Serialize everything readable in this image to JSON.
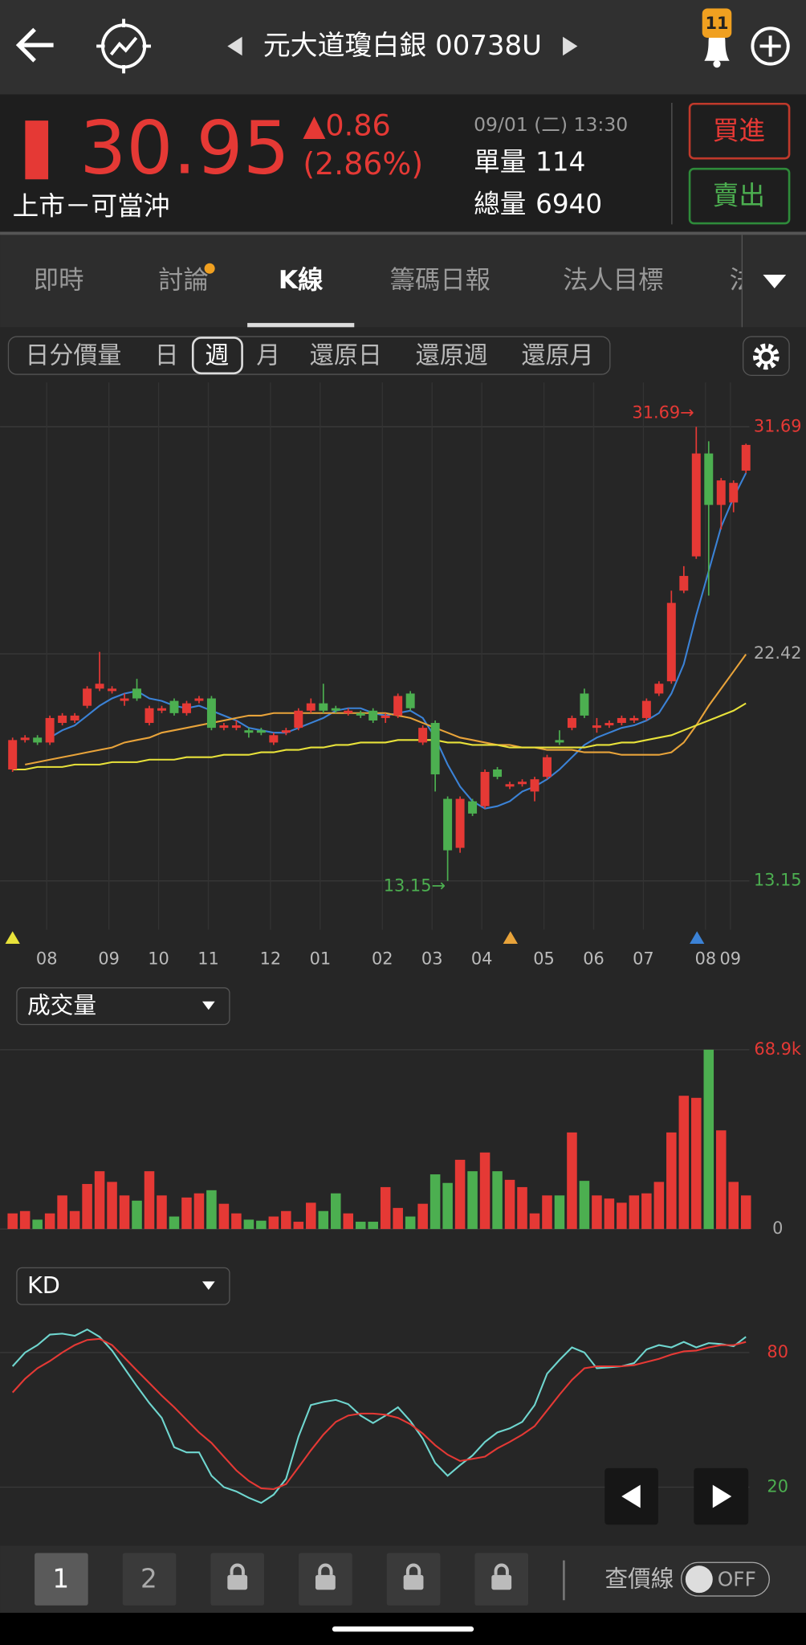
{
  "header": {
    "title": "元大道瓊白銀 00738U",
    "badge": "11"
  },
  "quote": {
    "price": "30.95",
    "change": "▲0.86",
    "percent": "(2.86%)",
    "market": "上市－可當沖",
    "time": "09/01 (二) 13:30",
    "single_label": "單量",
    "single_value": "114",
    "total_label": "總量",
    "total_value": "6940",
    "buy": "買進",
    "sell": "賣出"
  },
  "tabs": [
    "即時",
    "討論",
    "K線",
    "籌碼日報",
    "法人目標",
    "法"
  ],
  "periods": [
    "日分價量",
    "日",
    "週",
    "月",
    "還原日",
    "還原週",
    "還原月"
  ],
  "chart_data": [
    {
      "type": "candlestick",
      "categories": [
        null,
        null,
        null,
        "08",
        null,
        null,
        null,
        null,
        "09",
        null,
        null,
        null,
        "10",
        null,
        null,
        null,
        "11",
        null,
        null,
        null,
        null,
        "12",
        null,
        null,
        null,
        "01",
        null,
        null,
        null,
        null,
        "02",
        null,
        null,
        null,
        "03",
        null,
        null,
        null,
        "04",
        null,
        null,
        null,
        null,
        "05",
        null,
        null,
        null,
        "06",
        null,
        null,
        null,
        "07",
        null,
        null,
        null,
        null,
        "08",
        null,
        "09",
        null
      ],
      "open": [
        17.7,
        18.9,
        19.0,
        18.8,
        19.6,
        19.7,
        20.3,
        21.0,
        20.9,
        20.5,
        21.0,
        19.6,
        20.1,
        20.5,
        20.0,
        20.5,
        20.6,
        19.4,
        19.4,
        19.3,
        19.3,
        18.8,
        19.2,
        19.4,
        20.1,
        20.4,
        20.2,
        20.0,
        20.0,
        20.1,
        19.8,
        19.9,
        20.8,
        18.8,
        19.6,
        16.5,
        14.5,
        16.4,
        16.2,
        17.7,
        17.0,
        17.1,
        16.8,
        17.4,
        18.9,
        19.4,
        20.8,
        19.4,
        19.5,
        19.6,
        19.7,
        19.8,
        20.8,
        21.3,
        25.0,
        26.4,
        30.6,
        28.5,
        28.6,
        29.9
      ],
      "high": [
        19.0,
        19.1,
        19.1,
        19.9,
        20.0,
        20.0,
        21.1,
        22.5,
        21.1,
        20.8,
        21.4,
        20.3,
        20.3,
        20.6,
        20.5,
        20.7,
        20.7,
        19.6,
        19.7,
        19.4,
        19.4,
        19.2,
        19.4,
        20.2,
        20.6,
        21.2,
        20.3,
        20.2,
        20.1,
        20.2,
        20.0,
        20.8,
        20.9,
        19.5,
        19.7,
        16.6,
        16.6,
        16.5,
        17.7,
        17.8,
        17.2,
        17.3,
        17.4,
        18.3,
        19.3,
        19.9,
        21.0,
        19.8,
        19.7,
        19.9,
        19.9,
        20.6,
        21.3,
        25.0,
        26.0,
        31.69,
        31.1,
        29.6,
        29.5,
        31.0
      ],
      "low": [
        17.6,
        18.8,
        18.7,
        18.7,
        19.5,
        19.6,
        20.2,
        20.9,
        20.8,
        20.3,
        20.5,
        19.5,
        20.0,
        19.9,
        19.9,
        20.4,
        19.3,
        19.3,
        19.3,
        19.0,
        19.1,
        18.7,
        19.1,
        19.3,
        20.0,
        20.0,
        20.0,
        19.9,
        19.8,
        19.6,
        19.6,
        19.8,
        20.1,
        18.7,
        16.8,
        13.15,
        14.3,
        15.8,
        16.1,
        17.3,
        16.9,
        17.0,
        16.4,
        17.3,
        18.7,
        19.3,
        19.8,
        19.2,
        19.4,
        19.5,
        19.6,
        19.7,
        20.7,
        21.2,
        24.9,
        26.3,
        24.8,
        27.5,
        28.2,
        29.8
      ],
      "close": [
        18.9,
        19.0,
        18.8,
        19.8,
        19.9,
        19.9,
        21.0,
        21.2,
        21.0,
        20.6,
        20.6,
        20.2,
        20.2,
        20.0,
        20.4,
        20.6,
        19.4,
        19.5,
        19.5,
        19.2,
        19.2,
        19.1,
        19.3,
        20.1,
        20.4,
        20.1,
        20.1,
        20.1,
        19.9,
        19.7,
        19.9,
        20.7,
        20.2,
        19.4,
        17.5,
        14.4,
        16.5,
        15.9,
        17.6,
        17.4,
        17.1,
        17.2,
        17.3,
        18.2,
        18.8,
        19.8,
        19.9,
        19.5,
        19.6,
        19.8,
        19.8,
        20.5,
        21.2,
        24.5,
        25.6,
        30.6,
        28.5,
        29.5,
        29.4,
        30.95
      ],
      "up_color": "#e53935",
      "down_color": "#4caf50",
      "series": [
        {
          "color": "#3b82d6",
          "values": [
            null,
            null,
            null,
            19.0,
            19.3,
            19.5,
            19.9,
            20.3,
            20.6,
            20.8,
            20.9,
            20.6,
            20.5,
            20.3,
            20.2,
            20.3,
            20.1,
            19.9,
            19.7,
            19.4,
            19.3,
            19.2,
            19.2,
            19.4,
            19.6,
            19.8,
            20.1,
            20.2,
            20.2,
            20.0,
            19.9,
            20.0,
            20.1,
            19.8,
            19.0,
            17.9,
            17.0,
            16.4,
            16.1,
            16.2,
            16.4,
            16.8,
            17.0,
            17.3,
            17.7,
            18.2,
            18.7,
            19.0,
            19.2,
            19.4,
            19.5,
            19.7,
            20.0,
            20.8,
            22.0,
            24.0,
            25.8,
            27.6,
            28.8,
            29.8
          ]
        },
        {
          "color": "#e8a33a",
          "values": [
            null,
            17.9,
            18.0,
            18.1,
            18.2,
            18.3,
            18.4,
            18.5,
            18.6,
            18.8,
            18.9,
            19.0,
            19.2,
            19.3,
            19.4,
            19.5,
            19.6,
            19.7,
            19.8,
            19.9,
            19.9,
            20.0,
            20.0,
            20.0,
            20.0,
            20.0,
            20.0,
            20.0,
            20.0,
            20.0,
            20.0,
            19.9,
            19.8,
            19.6,
            19.4,
            19.2,
            19.0,
            18.9,
            18.8,
            18.7,
            18.7,
            18.6,
            18.6,
            18.5,
            18.5,
            18.5,
            18.4,
            18.4,
            18.4,
            18.3,
            18.3,
            18.3,
            18.3,
            18.4,
            18.8,
            19.5,
            20.3,
            21.0,
            21.7,
            22.4
          ]
        },
        {
          "color": "#e8e23a",
          "values": [
            17.7,
            17.7,
            17.8,
            17.8,
            17.8,
            17.9,
            17.9,
            17.9,
            18.0,
            18.0,
            18.0,
            18.1,
            18.1,
            18.1,
            18.2,
            18.2,
            18.2,
            18.3,
            18.3,
            18.3,
            18.4,
            18.4,
            18.5,
            18.5,
            18.6,
            18.6,
            18.7,
            18.7,
            18.8,
            18.8,
            18.8,
            18.9,
            18.9,
            18.9,
            18.9,
            18.8,
            18.8,
            18.7,
            18.7,
            18.7,
            18.6,
            18.6,
            18.6,
            18.6,
            18.6,
            18.6,
            18.6,
            18.7,
            18.7,
            18.8,
            18.8,
            18.9,
            19.0,
            19.1,
            19.3,
            19.5,
            19.7,
            19.9,
            20.1,
            20.4
          ]
        }
      ],
      "ylim": [
        11.5,
        33.5
      ],
      "yticks": [
        13.15,
        22.42,
        31.69
      ],
      "ytick_colors": [
        "#4caf50",
        "#aaaaaa",
        "#e53935"
      ],
      "grid": true,
      "annotations": [
        {
          "text": "31.69→",
          "value": 31.69,
          "color": "#e53935"
        },
        {
          "text": "13.15→",
          "value": 13.15,
          "color": "#4caf50"
        }
      ]
    },
    {
      "type": "bar",
      "title": "成交量",
      "values": [
        6.0,
        6.9,
        3.6,
        6.0,
        12.9,
        6.9,
        17.3,
        22.2,
        18.1,
        12.9,
        10.9,
        22.2,
        12.9,
        4.8,
        12.1,
        13.7,
        14.9,
        9.7,
        6.0,
        3.6,
        3.2,
        4.8,
        6.9,
        2.8,
        10.1,
        6.9,
        13.7,
        6.0,
        2.8,
        2.8,
        16.1,
        8.1,
        4.8,
        9.7,
        21.0,
        17.7,
        26.6,
        22.2,
        29.4,
        22.2,
        18.9,
        16.1,
        6.0,
        12.9,
        12.9,
        37.1,
        18.5,
        12.9,
        11.7,
        10.1,
        12.9,
        13.7,
        18.1,
        37.1,
        51.2,
        50.4,
        68.9,
        37.9,
        18.1,
        12.9
      ],
      "ylim": [
        0,
        68.9
      ],
      "yticks": [
        0,
        {
          "value": 68.9,
          "label": "68.9k"
        }
      ],
      "ytick_colors": [
        "#aaaaaa",
        "#e53935"
      ]
    },
    {
      "type": "line",
      "title": "KD",
      "series": [
        {
          "color": "#6fd6cf",
          "values": [
            73.9,
            80.0,
            83.3,
            88.0,
            88.4,
            87.5,
            90.3,
            87.0,
            80.9,
            73.0,
            65.0,
            57.5,
            50.9,
            37.8,
            35.5,
            35.5,
            25.1,
            20.0,
            18.1,
            15.3,
            13.0,
            16.7,
            23.7,
            42.5,
            56.6,
            58.0,
            58.9,
            57.0,
            51.9,
            48.6,
            51.9,
            55.6,
            49.5,
            41.6,
            30.8,
            25.1,
            29.8,
            34.1,
            40.2,
            44.4,
            46.2,
            49.1,
            56.6,
            70.6,
            76.7,
            82.3,
            80.0,
            73.0,
            73.4,
            73.9,
            75.3,
            81.4,
            83.3,
            82.3,
            84.7,
            82.3,
            84.2,
            83.8,
            82.8,
            87.0
          ]
        },
        {
          "color": "#e53935",
          "values": [
            62.2,
            68.3,
            73.0,
            76.2,
            80.0,
            83.3,
            85.6,
            86.1,
            83.3,
            77.7,
            72.0,
            66.4,
            60.8,
            55.6,
            50.0,
            44.4,
            39.7,
            33.6,
            27.5,
            22.8,
            19.5,
            19.1,
            21.4,
            28.9,
            36.4,
            43.4,
            49.1,
            51.9,
            52.8,
            52.8,
            52.3,
            50.9,
            48.1,
            43.9,
            38.7,
            34.5,
            31.7,
            32.6,
            33.6,
            37.3,
            40.2,
            43.4,
            47.2,
            54.2,
            61.2,
            67.8,
            73.0,
            73.9,
            73.9,
            73.9,
            74.4,
            75.8,
            77.2,
            79.1,
            80.5,
            80.9,
            82.3,
            83.3,
            83.3,
            84.7
          ]
        }
      ],
      "ylim": [
        0,
        100
      ],
      "yticks": [
        20,
        80
      ],
      "ytick_colors": [
        "#4caf50",
        "#e53935"
      ]
    }
  ],
  "bottom": {
    "pages": [
      "1",
      "2"
    ],
    "price_line": "查價線",
    "toggle": "OFF"
  }
}
